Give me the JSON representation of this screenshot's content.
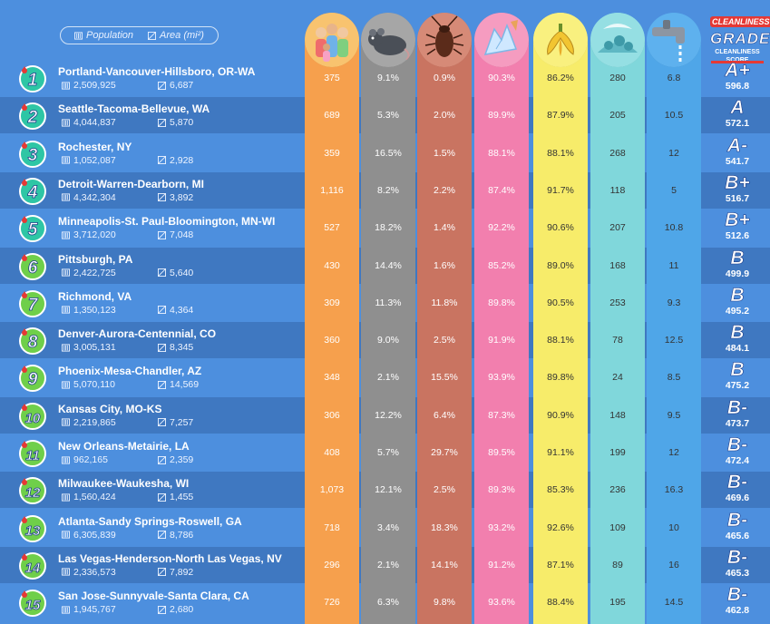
{
  "legend": {
    "population_label": "Population",
    "area_label": "Area (mi²)"
  },
  "grade_header": {
    "line1": "CLEANLINESS",
    "line2": "GRADE",
    "line3": "CLEANLINESS",
    "line4": "SCORE"
  },
  "columns": [
    {
      "key": "c1",
      "icon": "people-icon",
      "color": "#f6a04d",
      "text": "#ffffff"
    },
    {
      "key": "c2",
      "icon": "rat-icon",
      "color": "#8f8f8f",
      "text": "#ffffff"
    },
    {
      "key": "c3",
      "icon": "cockroach-icon",
      "color": "#c97461",
      "text": "#ffffff"
    },
    {
      "key": "c4",
      "icon": "broken-glass-icon",
      "color": "#f27fae",
      "text": "#ffffff"
    },
    {
      "key": "c5",
      "icon": "banana-peel-icon",
      "color": "#f7ec6a",
      "text": "#333333"
    },
    {
      "key": "c6",
      "icon": "trash-pile-icon",
      "color": "#80d7db",
      "text": "#333333"
    },
    {
      "key": "c7",
      "icon": "faucet-icon",
      "color": "#4fa6e8",
      "text": "#333333"
    }
  ],
  "chart_data": {
    "type": "table",
    "rows": [
      {
        "rank": "1",
        "metro": "Portland-Vancouver-Hillsboro, OR-WA",
        "population": "2,509,925",
        "area": "6,687",
        "values": [
          "375",
          "9.1%",
          "0.9%",
          "90.3%",
          "86.2%",
          "280",
          "6.8"
        ],
        "grade": "A+",
        "score": "596.8"
      },
      {
        "rank": "2",
        "metro": "Seattle-Tacoma-Bellevue, WA",
        "population": "4,044,837",
        "area": "5,870",
        "values": [
          "689",
          "5.3%",
          "2.0%",
          "89.9%",
          "87.9%",
          "205",
          "10.5"
        ],
        "grade": "A",
        "score": "572.1"
      },
      {
        "rank": "3",
        "metro": "Rochester, NY",
        "population": "1,052,087",
        "area": "2,928",
        "values": [
          "359",
          "16.5%",
          "1.5%",
          "88.1%",
          "88.1%",
          "268",
          "12"
        ],
        "grade": "A-",
        "score": "541.7"
      },
      {
        "rank": "4",
        "metro": "Detroit-Warren-Dearborn, MI",
        "population": "4,342,304",
        "area": "3,892",
        "values": [
          "1,116",
          "8.2%",
          "2.2%",
          "87.4%",
          "91.7%",
          "118",
          "5"
        ],
        "grade": "B+",
        "score": "516.7"
      },
      {
        "rank": "5",
        "metro": "Minneapolis-St. Paul-Bloomington, MN-WI",
        "population": "3,712,020",
        "area": "7,048",
        "values": [
          "527",
          "18.2%",
          "1.4%",
          "92.2%",
          "90.6%",
          "207",
          "10.8"
        ],
        "grade": "B+",
        "score": "512.6"
      },
      {
        "rank": "6",
        "metro": "Pittsburgh, PA",
        "population": "2,422,725",
        "area": "5,640",
        "values": [
          "430",
          "14.4%",
          "1.6%",
          "85.2%",
          "89.0%",
          "168",
          "11"
        ],
        "grade": "B",
        "score": "499.9"
      },
      {
        "rank": "7",
        "metro": "Richmond, VA",
        "population": "1,350,123",
        "area": "4,364",
        "values": [
          "309",
          "11.3%",
          "11.8%",
          "89.8%",
          "90.5%",
          "253",
          "9.3"
        ],
        "grade": "B",
        "score": "495.2"
      },
      {
        "rank": "8",
        "metro": "Denver-Aurora-Centennial, CO",
        "population": "3,005,131",
        "area": "8,345",
        "values": [
          "360",
          "9.0%",
          "2.5%",
          "91.9%",
          "88.1%",
          "78",
          "12.5"
        ],
        "grade": "B",
        "score": "484.1"
      },
      {
        "rank": "9",
        "metro": "Phoenix-Mesa-Chandler, AZ",
        "population": "5,070,110",
        "area": "14,569",
        "values": [
          "348",
          "2.1%",
          "15.5%",
          "93.9%",
          "89.8%",
          "24",
          "8.5"
        ],
        "grade": "B",
        "score": "475.2"
      },
      {
        "rank": "10",
        "metro": "Kansas City, MO-KS",
        "population": "2,219,865",
        "area": "7,257",
        "values": [
          "306",
          "12.2%",
          "6.4%",
          "87.3%",
          "90.9%",
          "148",
          "9.5"
        ],
        "grade": "B-",
        "score": "473.7"
      },
      {
        "rank": "11",
        "metro": "New Orleans-Metairie, LA",
        "population": "962,165",
        "area": "2,359",
        "values": [
          "408",
          "5.7%",
          "29.7%",
          "89.5%",
          "91.1%",
          "199",
          "12"
        ],
        "grade": "B-",
        "score": "472.4"
      },
      {
        "rank": "12",
        "metro": "Milwaukee-Waukesha, WI",
        "population": "1,560,424",
        "area": "1,455",
        "values": [
          "1,073",
          "12.1%",
          "2.5%",
          "89.3%",
          "85.3%",
          "236",
          "16.3"
        ],
        "grade": "B-",
        "score": "469.6"
      },
      {
        "rank": "13",
        "metro": "Atlanta-Sandy Springs-Roswell, GA",
        "population": "6,305,839",
        "area": "8,786",
        "values": [
          "718",
          "3.4%",
          "18.3%",
          "93.2%",
          "92.6%",
          "109",
          "10"
        ],
        "grade": "B-",
        "score": "465.6"
      },
      {
        "rank": "14",
        "metro": "Las Vegas-Henderson-North Las Vegas, NV",
        "population": "2,336,573",
        "area": "7,892",
        "values": [
          "296",
          "2.1%",
          "14.1%",
          "91.2%",
          "87.1%",
          "89",
          "16"
        ],
        "grade": "B-",
        "score": "465.3"
      },
      {
        "rank": "15",
        "metro": "San Jose-Sunnyvale-Santa Clara, CA",
        "population": "1,945,767",
        "area": "2,680",
        "values": [
          "726",
          "6.3%",
          "9.8%",
          "93.6%",
          "88.4%",
          "195",
          "14.5"
        ],
        "grade": "B-",
        "score": "462.8"
      }
    ]
  }
}
